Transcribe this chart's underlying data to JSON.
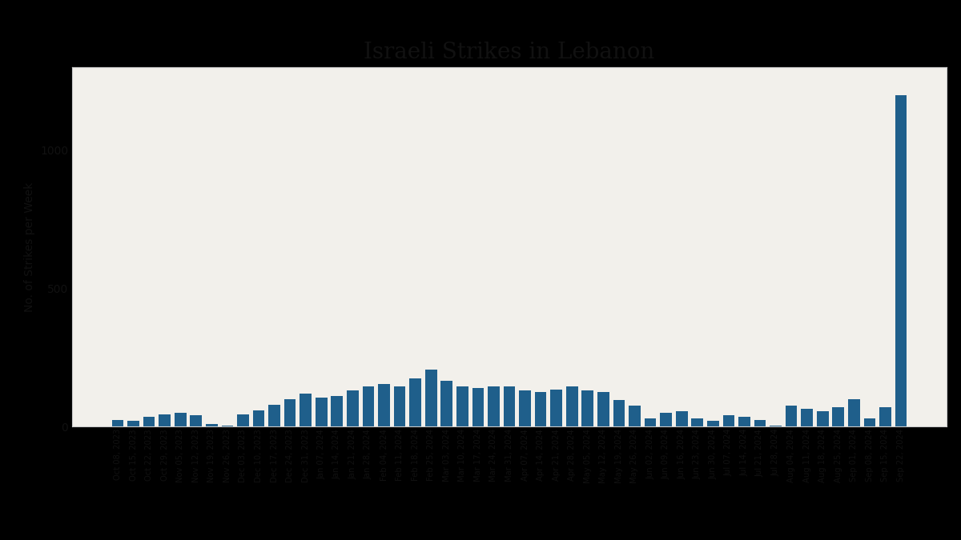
{
  "title": "Israeli Strikes in Lebanon",
  "ylabel": "No. of Strikes per Week",
  "bar_color": "#1F5F8B",
  "title_fontsize": 20,
  "ylabel_fontsize": 10,
  "categories": [
    "Oct 08, 2023",
    "Oct 15, 2023",
    "Oct 22, 2023",
    "Oct 29, 2023",
    "Nov 05, 2023",
    "Nov 12, 2023",
    "Nov 19, 2023",
    "Nov 26, 2023",
    "Dec 03, 2023",
    "Dec 10, 2023",
    "Dec 17, 2023",
    "Dec 24, 2023",
    "Dec 31, 2023",
    "Jan 07, 2024",
    "Jan 14, 2024",
    "Jan 21, 2024",
    "Jan 28, 2024",
    "Feb 04, 2024",
    "Feb 11, 2024",
    "Feb 18, 2024",
    "Feb 25, 2024",
    "Mar 03, 2024",
    "Mar 10, 2024",
    "Mar 17, 2024",
    "Mar 24, 2024",
    "Mar 31, 2024",
    "Apr 07, 2024",
    "Apr 14, 2024",
    "Apr 21, 2024",
    "Apr 28, 2024",
    "May 05, 2024",
    "May 12, 2024",
    "May 19, 2024",
    "May 26, 2024",
    "Jun 02, 2024",
    "Jun 09, 2024",
    "Jun 16, 2024",
    "Jun 23, 2024",
    "Jun 30, 2024",
    "Jul 07, 2024",
    "Jul 14, 2024",
    "Jul 21, 2024",
    "Jul 28, 2024",
    "Aug 04, 2024",
    "Aug 11, 2024",
    "Aug 18, 2024",
    "Aug 25, 2024",
    "Sep 01, 2024",
    "Sep 08, 2024",
    "Sep 15, 2024",
    "Sep 22, 2024"
  ],
  "values": [
    25,
    20,
    35,
    45,
    50,
    40,
    10,
    5,
    45,
    60,
    80,
    100,
    120,
    105,
    110,
    130,
    145,
    155,
    145,
    175,
    205,
    165,
    145,
    140,
    145,
    145,
    130,
    125,
    135,
    145,
    130,
    125,
    95,
    75,
    30,
    50,
    55,
    30,
    20,
    40,
    35,
    25,
    5,
    75,
    65,
    55,
    70,
    100,
    30,
    70,
    1200
  ],
  "fig_bg_color": "#000000",
  "chart_bg_color": "#F2F0EB",
  "title_bg_color": "#F2F0EB",
  "ylim": [
    0,
    1300
  ],
  "yticks": [
    0,
    500,
    1000
  ],
  "title_color": "#111111",
  "bar_edge_color": "none",
  "spine_color": "#cccccc",
  "outer_border_color": "#888888"
}
